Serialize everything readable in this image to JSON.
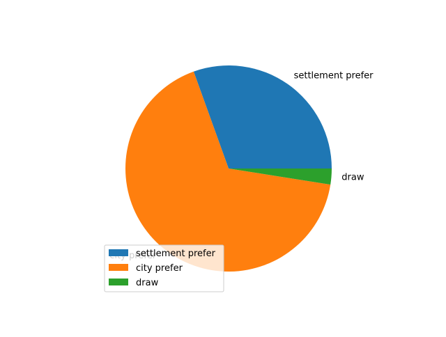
{
  "chart_data": {
    "type": "pie",
    "title": "",
    "categories": [
      "settlement prefer",
      "city prefer",
      "draw"
    ],
    "values": [
      30.5,
      67.0,
      2.5
    ],
    "colors": [
      "#1f77b4",
      "#ff7f0e",
      "#2ca02c"
    ],
    "start_angle_deg": 0,
    "direction": "counterclockwise",
    "legend": {
      "position": "lower-left",
      "entries": [
        "settlement prefer",
        "city prefer",
        "draw"
      ]
    }
  }
}
